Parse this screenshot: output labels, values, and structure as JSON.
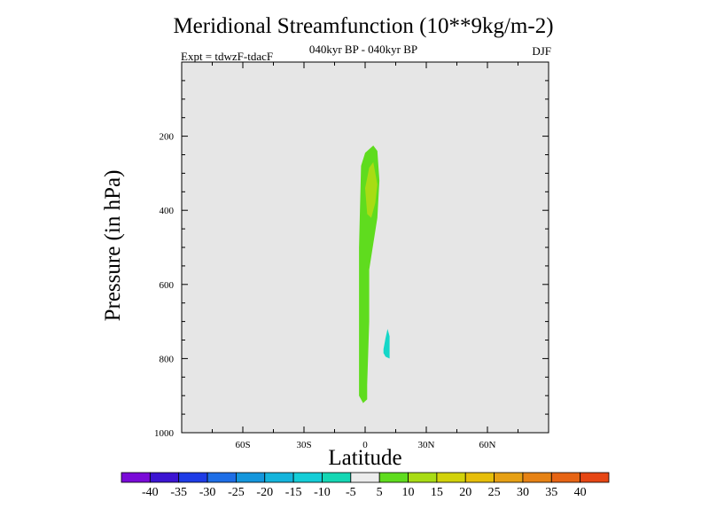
{
  "chart_data": {
    "type": "heatmap",
    "title": "Meridional Streamfunction (10**9kg/m-2)",
    "subtitle": "040kyr BP - 040kyr BP",
    "experiment_label": "Expt = tdwzF-tdacF",
    "season_label": "DJF",
    "xlabel": "Latitude",
    "ylabel": "Pressure (in hPa)",
    "xlim": [
      -90,
      90
    ],
    "ylim": [
      1000,
      0
    ],
    "y_reversed": true,
    "x_ticks": [
      {
        "value": -60,
        "label": "60S"
      },
      {
        "value": -30,
        "label": "30S"
      },
      {
        "value": 0,
        "label": "0"
      },
      {
        "value": 30,
        "label": "30N"
      },
      {
        "value": 60,
        "label": "60N"
      }
    ],
    "y_ticks": [
      {
        "value": 200,
        "label": "200"
      },
      {
        "value": 400,
        "label": "400"
      },
      {
        "value": 600,
        "label": "600"
      },
      {
        "value": 800,
        "label": "800"
      },
      {
        "value": 1000,
        "label": "1000"
      }
    ],
    "background_color": "#e6e6e6",
    "contour_regions": [
      {
        "level": "5 to 10",
        "color": "#5fdc1e",
        "outline": [
          [
            -1,
            920
          ],
          [
            -3,
            900
          ],
          [
            -3,
            500
          ],
          [
            -2,
            280
          ],
          [
            0,
            245
          ],
          [
            4,
            225
          ],
          [
            6,
            240
          ],
          [
            7,
            320
          ],
          [
            6,
            420
          ],
          [
            2,
            560
          ],
          [
            2,
            700
          ],
          [
            1,
            870
          ],
          [
            1,
            910
          ]
        ]
      },
      {
        "level": "10 to 15",
        "color": "#a8dc14",
        "outline": [
          [
            1,
            410
          ],
          [
            0,
            340
          ],
          [
            2,
            285
          ],
          [
            4,
            270
          ],
          [
            6,
            330
          ],
          [
            5,
            380
          ],
          [
            3,
            420
          ]
        ]
      },
      {
        "level": "-10 to -5",
        "color": "#14d7c8",
        "outline": [
          [
            9,
            775
          ],
          [
            10,
            745
          ],
          [
            11,
            720
          ],
          [
            12,
            740
          ],
          [
            12,
            800
          ],
          [
            10,
            795
          ],
          [
            9,
            785
          ]
        ]
      }
    ],
    "colorbar": {
      "colors": [
        "#7a0ad8",
        "#3c14d2",
        "#1e3ce6",
        "#1e6ee6",
        "#1496dc",
        "#14b4dc",
        "#14cdd7",
        "#14d7b4",
        "#ececec",
        "#5fdc1e",
        "#a8dc14",
        "#d2d20a",
        "#e6be0a",
        "#e6a014",
        "#e68214",
        "#e66414",
        "#e64614"
      ],
      "labels": [
        "-40",
        "-35",
        "-30",
        "-25",
        "-20",
        "-15",
        "-10",
        "-5",
        "5",
        "10",
        "15",
        "20",
        "25",
        "30",
        "35",
        "40"
      ]
    }
  }
}
